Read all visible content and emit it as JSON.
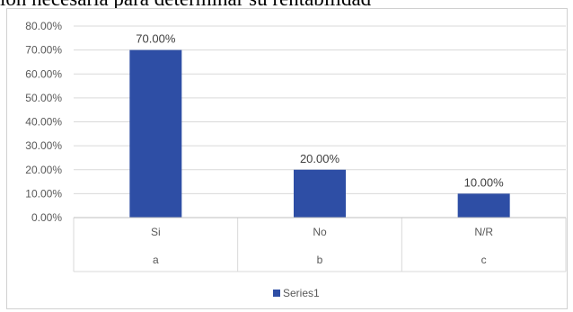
{
  "caption_fragment": "ión necesaria para determinar su rentabilidad",
  "chart_data": {
    "type": "bar",
    "categories": [
      "Si",
      "No",
      "N/R"
    ],
    "subcategories": [
      "a",
      "b",
      "c"
    ],
    "series": [
      {
        "name": "Series1",
        "values": [
          70,
          20,
          10
        ],
        "color": "#2e4ea5"
      }
    ],
    "data_labels": [
      "70.00%",
      "20.00%",
      "10.00%"
    ],
    "y_ticks": [
      "0.00%",
      "10.00%",
      "20.00%",
      "30.00%",
      "40.00%",
      "50.00%",
      "60.00%",
      "70.00%",
      "80.00%"
    ],
    "ylim": [
      0,
      80
    ],
    "grid": true,
    "legend_position": "bottom",
    "title": "",
    "xlabel": "",
    "ylabel": ""
  }
}
